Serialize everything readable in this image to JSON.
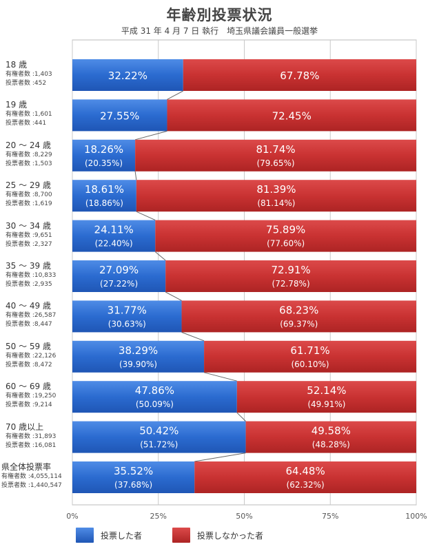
{
  "chart_data": {
    "type": "bar",
    "stacked": true,
    "orientation": "horizontal",
    "title": "年齢別投票状況",
    "subtitle": "平成 31 年 4 月 7 日 執行　埼玉県議会議員一般選挙",
    "xlim": [
      0,
      100
    ],
    "x_ticks": [
      "0%",
      "25%",
      "50%",
      "75%",
      "100%"
    ],
    "grid": true,
    "legend_position": "bottom",
    "stat_labels": {
      "eligible": "有権者数",
      "voters": "投票者数"
    },
    "series": [
      {
        "name": "投票した者",
        "color": "#2f6fcf"
      },
      {
        "name": "投票しなかった者",
        "color": "#c83232"
      }
    ],
    "rows": [
      {
        "category": "18 歳",
        "eligible": "1,403",
        "voters": "452",
        "voted": 32.22,
        "not_voted": 67.78,
        "voted_label": "32.22%",
        "not_voted_label": "67.78%",
        "voted_prev": "",
        "not_voted_prev": ""
      },
      {
        "category": "19 歳",
        "eligible": "1,601",
        "voters": "441",
        "voted": 27.55,
        "not_voted": 72.45,
        "voted_label": "27.55%",
        "not_voted_label": "72.45%",
        "voted_prev": "",
        "not_voted_prev": ""
      },
      {
        "category": "20 ～ 24 歳",
        "eligible": "8,229",
        "voters": "1,503",
        "voted": 18.26,
        "not_voted": 81.74,
        "voted_label": "18.26%",
        "not_voted_label": "81.74%",
        "voted_prev": "(20.35%)",
        "not_voted_prev": "(79.65%)"
      },
      {
        "category": "25 ～ 29 歳",
        "eligible": "8,700",
        "voters": "1,619",
        "voted": 18.61,
        "not_voted": 81.39,
        "voted_label": "18.61%",
        "not_voted_label": "81.39%",
        "voted_prev": "(18.86%)",
        "not_voted_prev": "(81.14%)"
      },
      {
        "category": "30 ～ 34 歳",
        "eligible": "9,651",
        "voters": "2,327",
        "voted": 24.11,
        "not_voted": 75.89,
        "voted_label": "24.11%",
        "not_voted_label": "75.89%",
        "voted_prev": "(22.40%)",
        "not_voted_prev": "(77.60%)"
      },
      {
        "category": "35 ～ 39 歳",
        "eligible": "10,833",
        "voters": "2,935",
        "voted": 27.09,
        "not_voted": 72.91,
        "voted_label": "27.09%",
        "not_voted_label": "72.91%",
        "voted_prev": "(27.22%)",
        "not_voted_prev": "(72.78%)"
      },
      {
        "category": "40 ～ 49 歳",
        "eligible": "26,587",
        "voters": "8,447",
        "voted": 31.77,
        "not_voted": 68.23,
        "voted_label": "31.77%",
        "not_voted_label": "68.23%",
        "voted_prev": "(30.63%)",
        "not_voted_prev": "(69.37%)"
      },
      {
        "category": "50 ～ 59 歳",
        "eligible": "22,126",
        "voters": "8,472",
        "voted": 38.29,
        "not_voted": 61.71,
        "voted_label": "38.29%",
        "not_voted_label": "61.71%",
        "voted_prev": "(39.90%)",
        "not_voted_prev": "(60.10%)"
      },
      {
        "category": "60 ～ 69 歳",
        "eligible": "19,250",
        "voters": "9,214",
        "voted": 47.86,
        "not_voted": 52.14,
        "voted_label": "47.86%",
        "not_voted_label": "52.14%",
        "voted_prev": "(50.09%)",
        "not_voted_prev": "(49.91%)"
      },
      {
        "category": "70 歳以上",
        "eligible": "31,893",
        "voters": "16,081",
        "voted": 50.42,
        "not_voted": 49.58,
        "voted_label": "50.42%",
        "not_voted_label": "49.58%",
        "voted_prev": "(51.72%)",
        "not_voted_prev": "(48.28%)"
      },
      {
        "category": "県全体投票率",
        "eligible": "4,055,114",
        "voters": "1,440,547",
        "voted": 35.52,
        "not_voted": 64.48,
        "voted_label": "35.52%",
        "not_voted_label": "64.48%",
        "voted_prev": "(37.68%)",
        "not_voted_prev": "(62.32%)"
      }
    ]
  }
}
